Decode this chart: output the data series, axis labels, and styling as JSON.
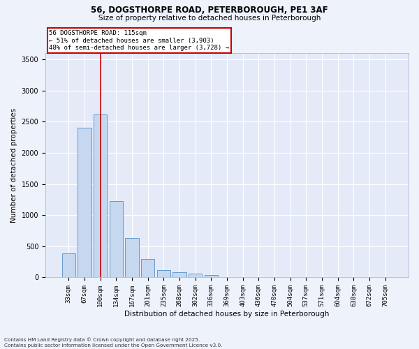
{
  "title_line1": "56, DOGSTHORPE ROAD, PETERBOROUGH, PE1 3AF",
  "title_line2": "Size of property relative to detached houses in Peterborough",
  "xlabel": "Distribution of detached houses by size in Peterborough",
  "ylabel": "Number of detached properties",
  "categories": [
    "33sqm",
    "67sqm",
    "100sqm",
    "134sqm",
    "167sqm",
    "201sqm",
    "235sqm",
    "268sqm",
    "302sqm",
    "336sqm",
    "369sqm",
    "403sqm",
    "436sqm",
    "470sqm",
    "504sqm",
    "537sqm",
    "571sqm",
    "604sqm",
    "638sqm",
    "672sqm",
    "705sqm"
  ],
  "values": [
    390,
    2400,
    2620,
    1230,
    630,
    300,
    120,
    80,
    60,
    40,
    10,
    5,
    0,
    0,
    0,
    0,
    0,
    0,
    0,
    0,
    0
  ],
  "bar_color": "#c5d8f0",
  "bar_edge_color": "#6699cc",
  "vline_color": "#cc0000",
  "annotation_title": "56 DOGSTHORPE ROAD: 115sqm",
  "annotation_line2": "← 51% of detached houses are smaller (3,903)",
  "annotation_line3": "48% of semi-detached houses are larger (3,728) →",
  "annotation_box_color": "#cc0000",
  "ylim": [
    0,
    3600
  ],
  "yticks": [
    0,
    500,
    1000,
    1500,
    2000,
    2500,
    3000,
    3500
  ],
  "footer_line1": "Contains HM Land Registry data © Crown copyright and database right 2025.",
  "footer_line2": "Contains public sector information licensed under the Open Government Licence v3.0.",
  "bg_color": "#eef2fb",
  "plot_bg_color": "#e4eaf8"
}
